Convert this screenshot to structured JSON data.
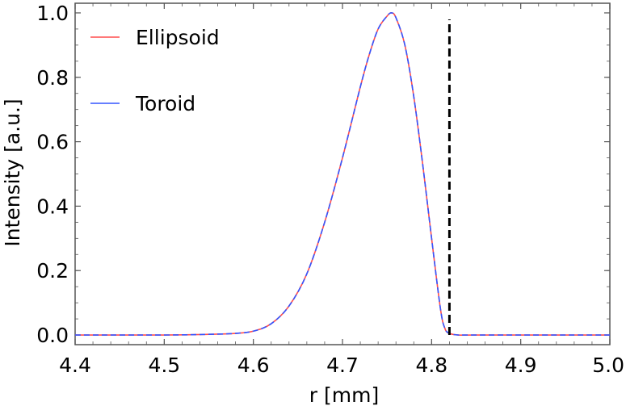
{
  "chart_data": {
    "type": "line",
    "title": "",
    "xlabel": "r [mm]",
    "ylabel": "Intensity [a.u.]",
    "xlim": [
      4.4,
      5.0
    ],
    "ylim": [
      -0.03,
      1.03
    ],
    "x_ticks": [
      "4.4",
      "4.5",
      "4.6",
      "4.7",
      "4.8",
      "4.9",
      "5.0"
    ],
    "y_ticks": [
      "0.0",
      "0.2",
      "0.4",
      "0.6",
      "0.8",
      "1.0"
    ],
    "grid": false,
    "legend_position": "top-left",
    "series": [
      {
        "name": "Ellipsoid",
        "color": "#ff4d4d",
        "style": "solid",
        "x": [
          4.4,
          4.5,
          4.55,
          4.58,
          4.6,
          4.62,
          4.64,
          4.66,
          4.68,
          4.7,
          4.72,
          4.73,
          4.74,
          4.75,
          4.755,
          4.76,
          4.77,
          4.78,
          4.79,
          4.8,
          4.81,
          4.815,
          4.82,
          4.83,
          4.85,
          5.0
        ],
        "y": [
          0.0,
          0.0,
          0.002,
          0.005,
          0.012,
          0.035,
          0.09,
          0.19,
          0.35,
          0.55,
          0.77,
          0.87,
          0.95,
          0.99,
          1.0,
          0.985,
          0.9,
          0.74,
          0.53,
          0.3,
          0.08,
          0.02,
          0.005,
          0.0,
          0.0,
          0.0
        ]
      },
      {
        "name": "Toroid",
        "color": "#3355ff",
        "style": "dashed",
        "x": [
          4.4,
          4.5,
          4.55,
          4.58,
          4.6,
          4.62,
          4.64,
          4.66,
          4.68,
          4.7,
          4.72,
          4.73,
          4.74,
          4.75,
          4.755,
          4.76,
          4.77,
          4.78,
          4.79,
          4.8,
          4.81,
          4.815,
          4.82,
          4.83,
          4.85,
          5.0
        ],
        "y": [
          0.0,
          0.0,
          0.002,
          0.005,
          0.012,
          0.035,
          0.09,
          0.19,
          0.35,
          0.55,
          0.77,
          0.87,
          0.95,
          0.99,
          1.0,
          0.985,
          0.9,
          0.74,
          0.53,
          0.3,
          0.08,
          0.02,
          0.005,
          0.0,
          0.0,
          0.0
        ]
      }
    ],
    "reference_line": {
      "orientation": "vertical",
      "x": 4.82,
      "y_from": 0.0,
      "y_to": 0.98,
      "color": "#000000",
      "style": "dashed"
    }
  }
}
